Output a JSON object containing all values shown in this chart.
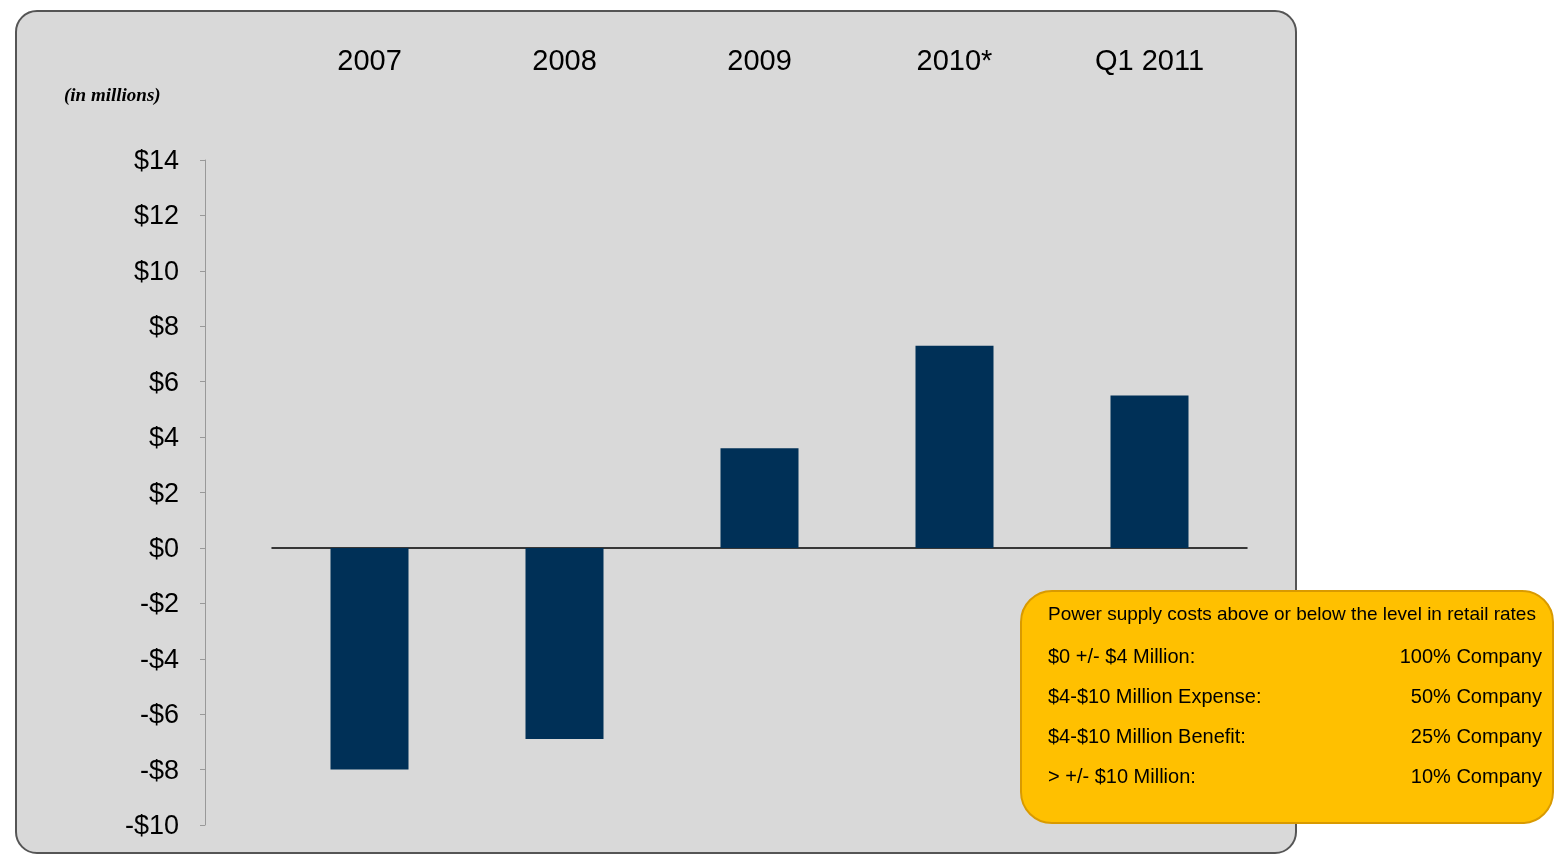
{
  "chart_data": {
    "type": "bar",
    "categories": [
      "2007",
      "2008",
      "2009",
      "2010*",
      "Q1 2011"
    ],
    "values": [
      -8.0,
      -6.9,
      3.6,
      7.3,
      5.5
    ],
    "color": "#003057",
    "ylim": [
      -10,
      14
    ],
    "yticks": [
      {
        "value": -10,
        "label": "-$10"
      },
      {
        "value": -8,
        "label": "-$8"
      },
      {
        "value": -6,
        "label": "-$6"
      },
      {
        "value": -4,
        "label": "-$4"
      },
      {
        "value": -2,
        "label": "-$2"
      },
      {
        "value": 0,
        "label": "$0"
      },
      {
        "value": 2,
        "label": "$2"
      },
      {
        "value": 4,
        "label": "$4"
      },
      {
        "value": 6,
        "label": "$6"
      },
      {
        "value": 8,
        "label": "$8"
      },
      {
        "value": 10,
        "label": "$10"
      },
      {
        "value": 12,
        "label": "$12"
      },
      {
        "value": 14,
        "label": "$14"
      }
    ],
    "annotations": [
      "(in millions)",
      "Power supply costs above or below the level in retail rates",
      "$0 +/- $4 Million:",
      "100% Company",
      "$4-$10 Million Expense:",
      "50% Company",
      "$4-$10 Million Benefit:",
      "25% Company",
      "> +/- $10 Million:",
      "10% Company"
    ]
  }
}
